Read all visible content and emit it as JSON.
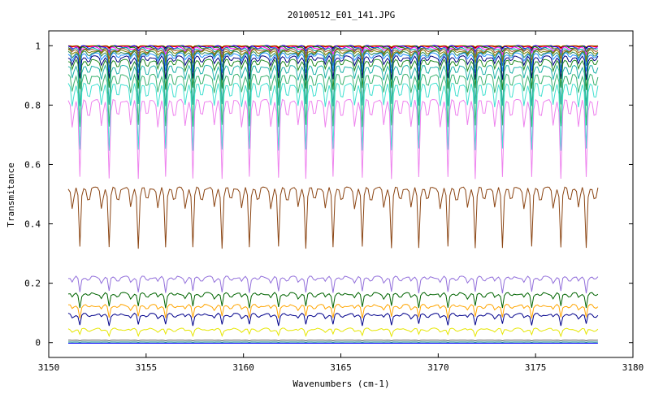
{
  "chart_data": {
    "type": "line",
    "title": "20100512_E01_141.JPG",
    "xlabel": "Wavenumbers (cm-1)",
    "ylabel": "Transmitance",
    "xlim": [
      3150,
      3180
    ],
    "ylim": [
      -0.05,
      1.05
    ],
    "x_ticks": [
      3150,
      3155,
      3160,
      3165,
      3170,
      3175,
      3180
    ],
    "x_tick_labels": [
      "3150",
      "3155",
      "3160",
      "3165",
      "3170",
      "3175",
      "3180"
    ],
    "y_ticks": [
      0,
      0.2,
      0.4,
      0.6,
      0.8,
      1
    ],
    "y_tick_labels": [
      "0",
      "0.2",
      "0.4",
      "0.6",
      "0.8",
      "1"
    ],
    "grid": false,
    "legend": "none",
    "x_range": [
      3151,
      3178.2
    ],
    "absorption_lines_cm1": [
      3151.6,
      3153.1,
      3154.6,
      3156.0,
      3157.4,
      3158.9,
      3160.3,
      3161.8,
      3163.2,
      3164.6,
      3166.1,
      3167.6,
      3169.0,
      3170.5,
      3171.9,
      3173.3,
      3174.8,
      3176.3,
      3177.6
    ],
    "series": [
      {
        "color": "#ffa500",
        "baseline": 1.0,
        "depth": 0.004
      },
      {
        "color": "#000000",
        "baseline": 0.999,
        "depth": 0.006
      },
      {
        "color": "#ff0000",
        "baseline": 0.998,
        "depth": 0.008
      },
      {
        "color": "#0000ff",
        "baseline": 0.997,
        "depth": 0.012
      },
      {
        "color": "#008000",
        "baseline": 0.995,
        "depth": 0.016
      },
      {
        "color": "#ff00ff",
        "baseline": 0.993,
        "depth": 0.02
      },
      {
        "color": "#00aaaa",
        "baseline": 0.99,
        "depth": 0.026
      },
      {
        "color": "#a0522d",
        "baseline": 0.987,
        "depth": 0.032
      },
      {
        "color": "#808000",
        "baseline": 0.983,
        "depth": 0.04
      },
      {
        "color": "#2e8b57",
        "baseline": 0.978,
        "depth": 0.05
      },
      {
        "color": "#1e90ff",
        "baseline": 0.972,
        "depth": 0.06
      },
      {
        "color": "#000080",
        "baseline": 0.962,
        "depth": 0.075
      },
      {
        "color": "#228b22",
        "baseline": 0.95,
        "depth": 0.095
      },
      {
        "color": "#20b2aa",
        "baseline": 0.93,
        "depth": 0.13
      },
      {
        "color": "#3cb371",
        "baseline": 0.9,
        "depth": 0.17
      },
      {
        "color": "#40e0d0",
        "baseline": 0.87,
        "depth": 0.22
      },
      {
        "color": "#ee82ee",
        "baseline": 0.815,
        "depth": 0.26
      },
      {
        "color": "#8b4513",
        "baseline": 0.52,
        "depth": 0.2
      },
      {
        "color": "#9370db",
        "baseline": 0.22,
        "depth": 0.05
      },
      {
        "color": "#006400",
        "baseline": 0.165,
        "depth": 0.045
      },
      {
        "color": "#ffa500",
        "baseline": 0.125,
        "depth": 0.04
      },
      {
        "color": "#00008b",
        "baseline": 0.095,
        "depth": 0.035
      },
      {
        "color": "#e6e600",
        "baseline": 0.045,
        "depth": 0.02
      },
      {
        "color": "#555555",
        "baseline": 0.008,
        "depth": 0.002
      },
      {
        "color": "#008080",
        "baseline": 0.002,
        "depth": 0.001
      },
      {
        "color": "#0000ff",
        "baseline": -0.002,
        "depth": 0.0
      }
    ]
  }
}
